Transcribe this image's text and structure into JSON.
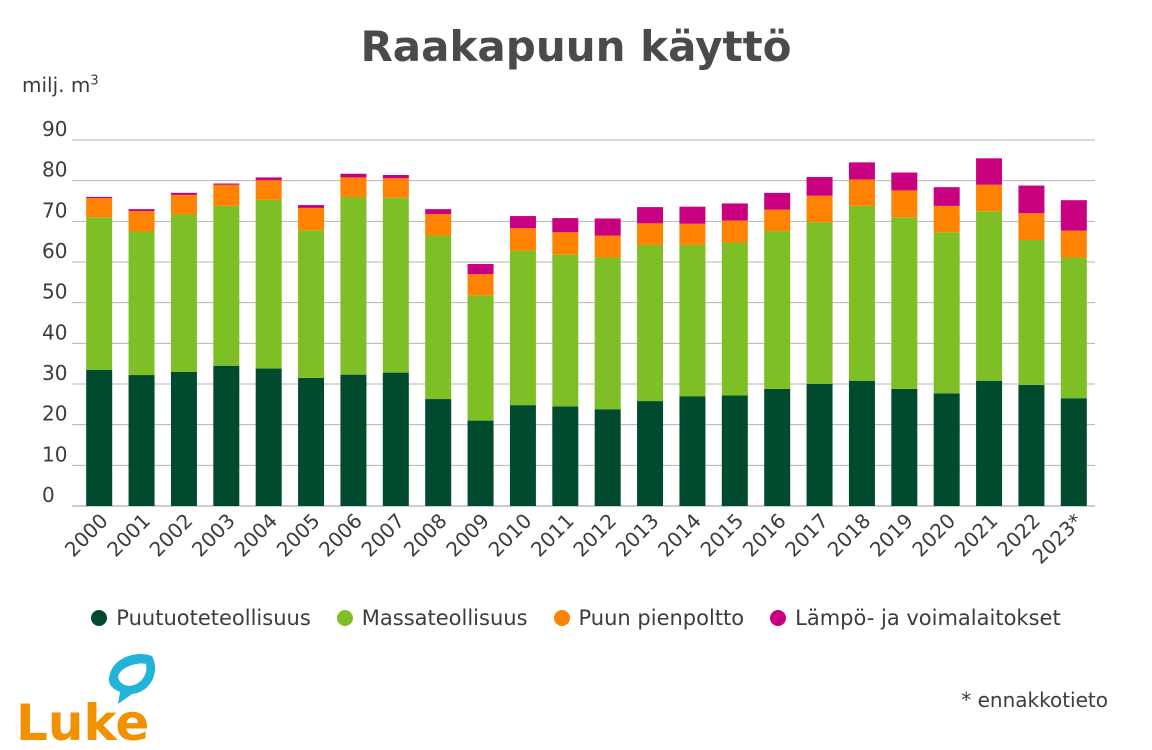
{
  "chart_data": {
    "type": "bar",
    "stacked": true,
    "title": "Raakapuun käyttö",
    "ylabel": "milj. m",
    "ylabel_superscript": "3",
    "ylim": [
      0,
      90
    ],
    "yticks": [
      0,
      10,
      20,
      30,
      40,
      50,
      60,
      70,
      80,
      90
    ],
    "grid": true,
    "legend_position": "bottom",
    "categories": [
      "2000",
      "2001",
      "2002",
      "2003",
      "2004",
      "2005",
      "2006",
      "2007",
      "2008",
      "2009",
      "2010",
      "2011",
      "2012",
      "2013",
      "2014",
      "2015",
      "2016",
      "2017",
      "2018",
      "2019",
      "2020",
      "2021",
      "2022",
      "2023*"
    ],
    "series": [
      {
        "name": "Puutuoteteollisuus",
        "color": "#004b2d",
        "values": [
          33.5,
          32.2,
          33.0,
          34.5,
          33.8,
          31.5,
          32.3,
          32.8,
          26.3,
          21.0,
          24.8,
          24.5,
          23.8,
          25.8,
          27.0,
          27.2,
          28.8,
          30.0,
          30.8,
          28.8,
          27.7,
          30.8,
          29.8,
          26.5
        ]
      },
      {
        "name": "Massateollisuus",
        "color": "#7ebf26",
        "values": [
          37.5,
          35.3,
          38.7,
          39.3,
          41.5,
          36.3,
          43.7,
          43.0,
          40.2,
          30.8,
          38.0,
          37.3,
          37.3,
          38.4,
          37.2,
          37.6,
          38.8,
          39.8,
          43.0,
          42.2,
          39.6,
          41.7,
          35.6,
          34.6
        ]
      },
      {
        "name": "Puun pienpoltto",
        "color": "#ff8300",
        "values": [
          4.7,
          5.0,
          4.8,
          5.2,
          4.8,
          5.5,
          4.8,
          4.8,
          5.3,
          5.2,
          5.5,
          5.5,
          5.4,
          5.3,
          5.2,
          5.4,
          5.3,
          6.5,
          6.5,
          6.6,
          6.5,
          6.5,
          6.6,
          6.6
        ]
      },
      {
        "name": "Lämpö- ja voimalaitokset",
        "color": "#c9007f",
        "values": [
          0.3,
          0.5,
          0.5,
          0.3,
          0.7,
          0.7,
          0.9,
          0.8,
          1.2,
          2.5,
          3.0,
          3.5,
          4.2,
          4.0,
          4.2,
          4.2,
          4.1,
          4.6,
          4.2,
          4.4,
          4.6,
          6.5,
          6.8,
          7.5
        ]
      }
    ],
    "footnote": "* ennakkotieto"
  },
  "logo": {
    "text": "Luke",
    "color": "#f29100",
    "leaf_color": "#22b3d8"
  }
}
